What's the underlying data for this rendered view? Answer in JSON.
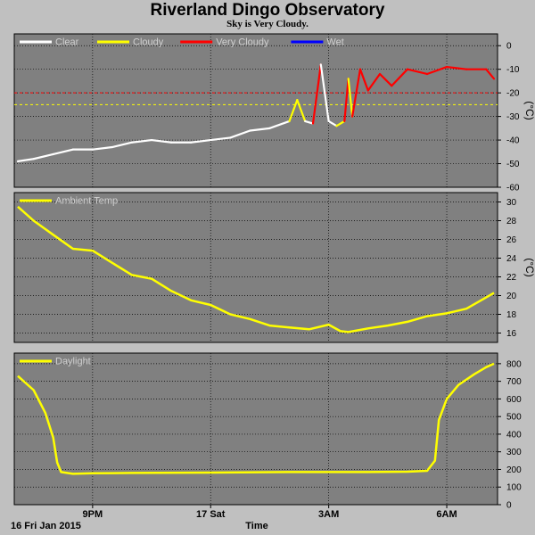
{
  "header": {
    "title": "Riverland Dingo Observatory",
    "subtitle": "Sky is Very Cloudy."
  },
  "footer": {
    "date_label": "16 Fri Jan 2015",
    "x_title": "Time"
  },
  "x_ticks": [
    "9PM",
    "17 Sat",
    "3AM",
    "6AM"
  ],
  "colors": {
    "background": "#c0c0c0",
    "panel": "#808080",
    "clear": "#ffffff",
    "cloudy": "#ffff00",
    "very_cloudy": "#ff0000",
    "wet": "#0000ff",
    "series": "#ffff00"
  },
  "chart_data": [
    {
      "type": "line",
      "legend": [
        "Clear",
        "Cloudy",
        "Very Cloudy",
        "Wet"
      ],
      "ylabel": "(°C)",
      "ylim": [
        -60,
        5
      ],
      "yticks": [
        "0",
        "-10",
        "-20",
        "-30",
        "-40",
        "-50",
        "-60"
      ],
      "thresholds": [
        {
          "value": -20,
          "color": "#ff0000"
        },
        {
          "value": -25,
          "color": "#ffff00"
        }
      ],
      "x_hours": [
        19.1,
        19.5,
        20.0,
        20.5,
        21.0,
        21.5,
        22.0,
        22.5,
        23.0,
        23.5,
        24.0,
        24.5,
        25.0,
        25.5,
        26.0,
        26.2,
        26.4,
        26.6,
        26.8,
        27.0,
        27.2,
        27.4,
        27.5,
        27.6,
        27.8,
        28.0,
        28.3,
        28.6,
        29.0,
        29.5,
        30.0,
        30.5,
        31.0,
        31.2
      ],
      "values": [
        -49,
        -48,
        -46,
        -44,
        -44,
        -43,
        -41,
        -40,
        -41,
        -41,
        -40,
        -39,
        -36,
        -35,
        -32,
        -23,
        -32,
        -33,
        -8,
        -32,
        -34,
        -32,
        -14,
        -30,
        -10,
        -19,
        -12,
        -17,
        -10,
        -12,
        -9,
        -10,
        -10,
        -14
      ],
      "states": [
        "clear",
        "clear",
        "clear",
        "clear",
        "clear",
        "clear",
        "clear",
        "clear",
        "clear",
        "clear",
        "clear",
        "clear",
        "clear",
        "clear",
        "clear",
        "cloudy",
        "cloudy",
        "clear",
        "very_cloudy",
        "clear",
        "clear",
        "cloudy",
        "very_cloudy",
        "cloudy",
        "very_cloudy",
        "very_cloudy",
        "very_cloudy",
        "very_cloudy",
        "very_cloudy",
        "very_cloudy",
        "very_cloudy",
        "very_cloudy",
        "very_cloudy",
        "very_cloudy"
      ]
    },
    {
      "type": "line",
      "legend": [
        "Ambient Temp"
      ],
      "ylabel": "(°C)",
      "ylim": [
        15,
        31
      ],
      "yticks": [
        "16",
        "18",
        "20",
        "22",
        "24",
        "26",
        "28",
        "30"
      ],
      "x_hours": [
        19.1,
        19.5,
        20.0,
        20.5,
        21.0,
        21.5,
        22.0,
        22.5,
        23.0,
        23.5,
        24.0,
        24.5,
        25.0,
        25.5,
        26.0,
        26.5,
        27.0,
        27.3,
        27.5,
        28.0,
        28.5,
        29.0,
        29.5,
        30.0,
        30.5,
        31.0,
        31.2
      ],
      "values": [
        29.5,
        28.0,
        26.5,
        25.0,
        24.8,
        23.5,
        22.2,
        21.8,
        20.5,
        19.5,
        19.0,
        18.0,
        17.5,
        16.8,
        16.6,
        16.4,
        16.9,
        16.2,
        16.1,
        16.5,
        16.8,
        17.2,
        17.8,
        18.1,
        18.6,
        19.8,
        20.3
      ]
    },
    {
      "type": "line",
      "legend": [
        "Daylight"
      ],
      "ylim": [
        0,
        860
      ],
      "yticks": [
        "0",
        "100",
        "200",
        "300",
        "400",
        "500",
        "600",
        "700",
        "800"
      ],
      "x_hours": [
        19.1,
        19.5,
        19.8,
        20.0,
        20.1,
        20.2,
        20.5,
        21.0,
        22.0,
        24.0,
        26.0,
        28.0,
        29.0,
        29.5,
        29.7,
        29.8,
        30.0,
        30.3,
        30.7,
        31.0,
        31.2
      ],
      "values": [
        730,
        650,
        520,
        380,
        240,
        185,
        175,
        178,
        180,
        182,
        185,
        185,
        187,
        192,
        250,
        480,
        600,
        680,
        740,
        780,
        800
      ]
    }
  ]
}
